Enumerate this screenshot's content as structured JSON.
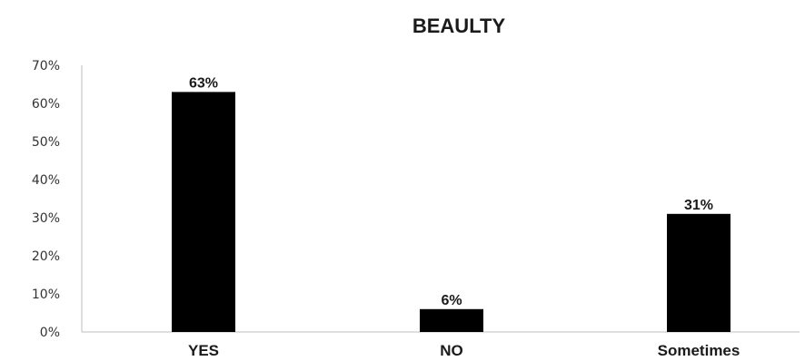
{
  "chart_data": {
    "type": "bar",
    "title": "BEAULTY",
    "categories": [
      "YES",
      "NO",
      "Sometimes"
    ],
    "values": [
      63,
      6,
      31
    ],
    "data_labels": [
      "63%",
      "6%",
      "31%"
    ],
    "ylim": [
      0,
      70
    ],
    "yticks": [
      "0%",
      "10%",
      "20%",
      "30%",
      "40%",
      "50%",
      "60%",
      "70%"
    ],
    "xlabel": "",
    "ylabel": "",
    "grid": false,
    "legend": "none",
    "bar_color": "#000000"
  }
}
